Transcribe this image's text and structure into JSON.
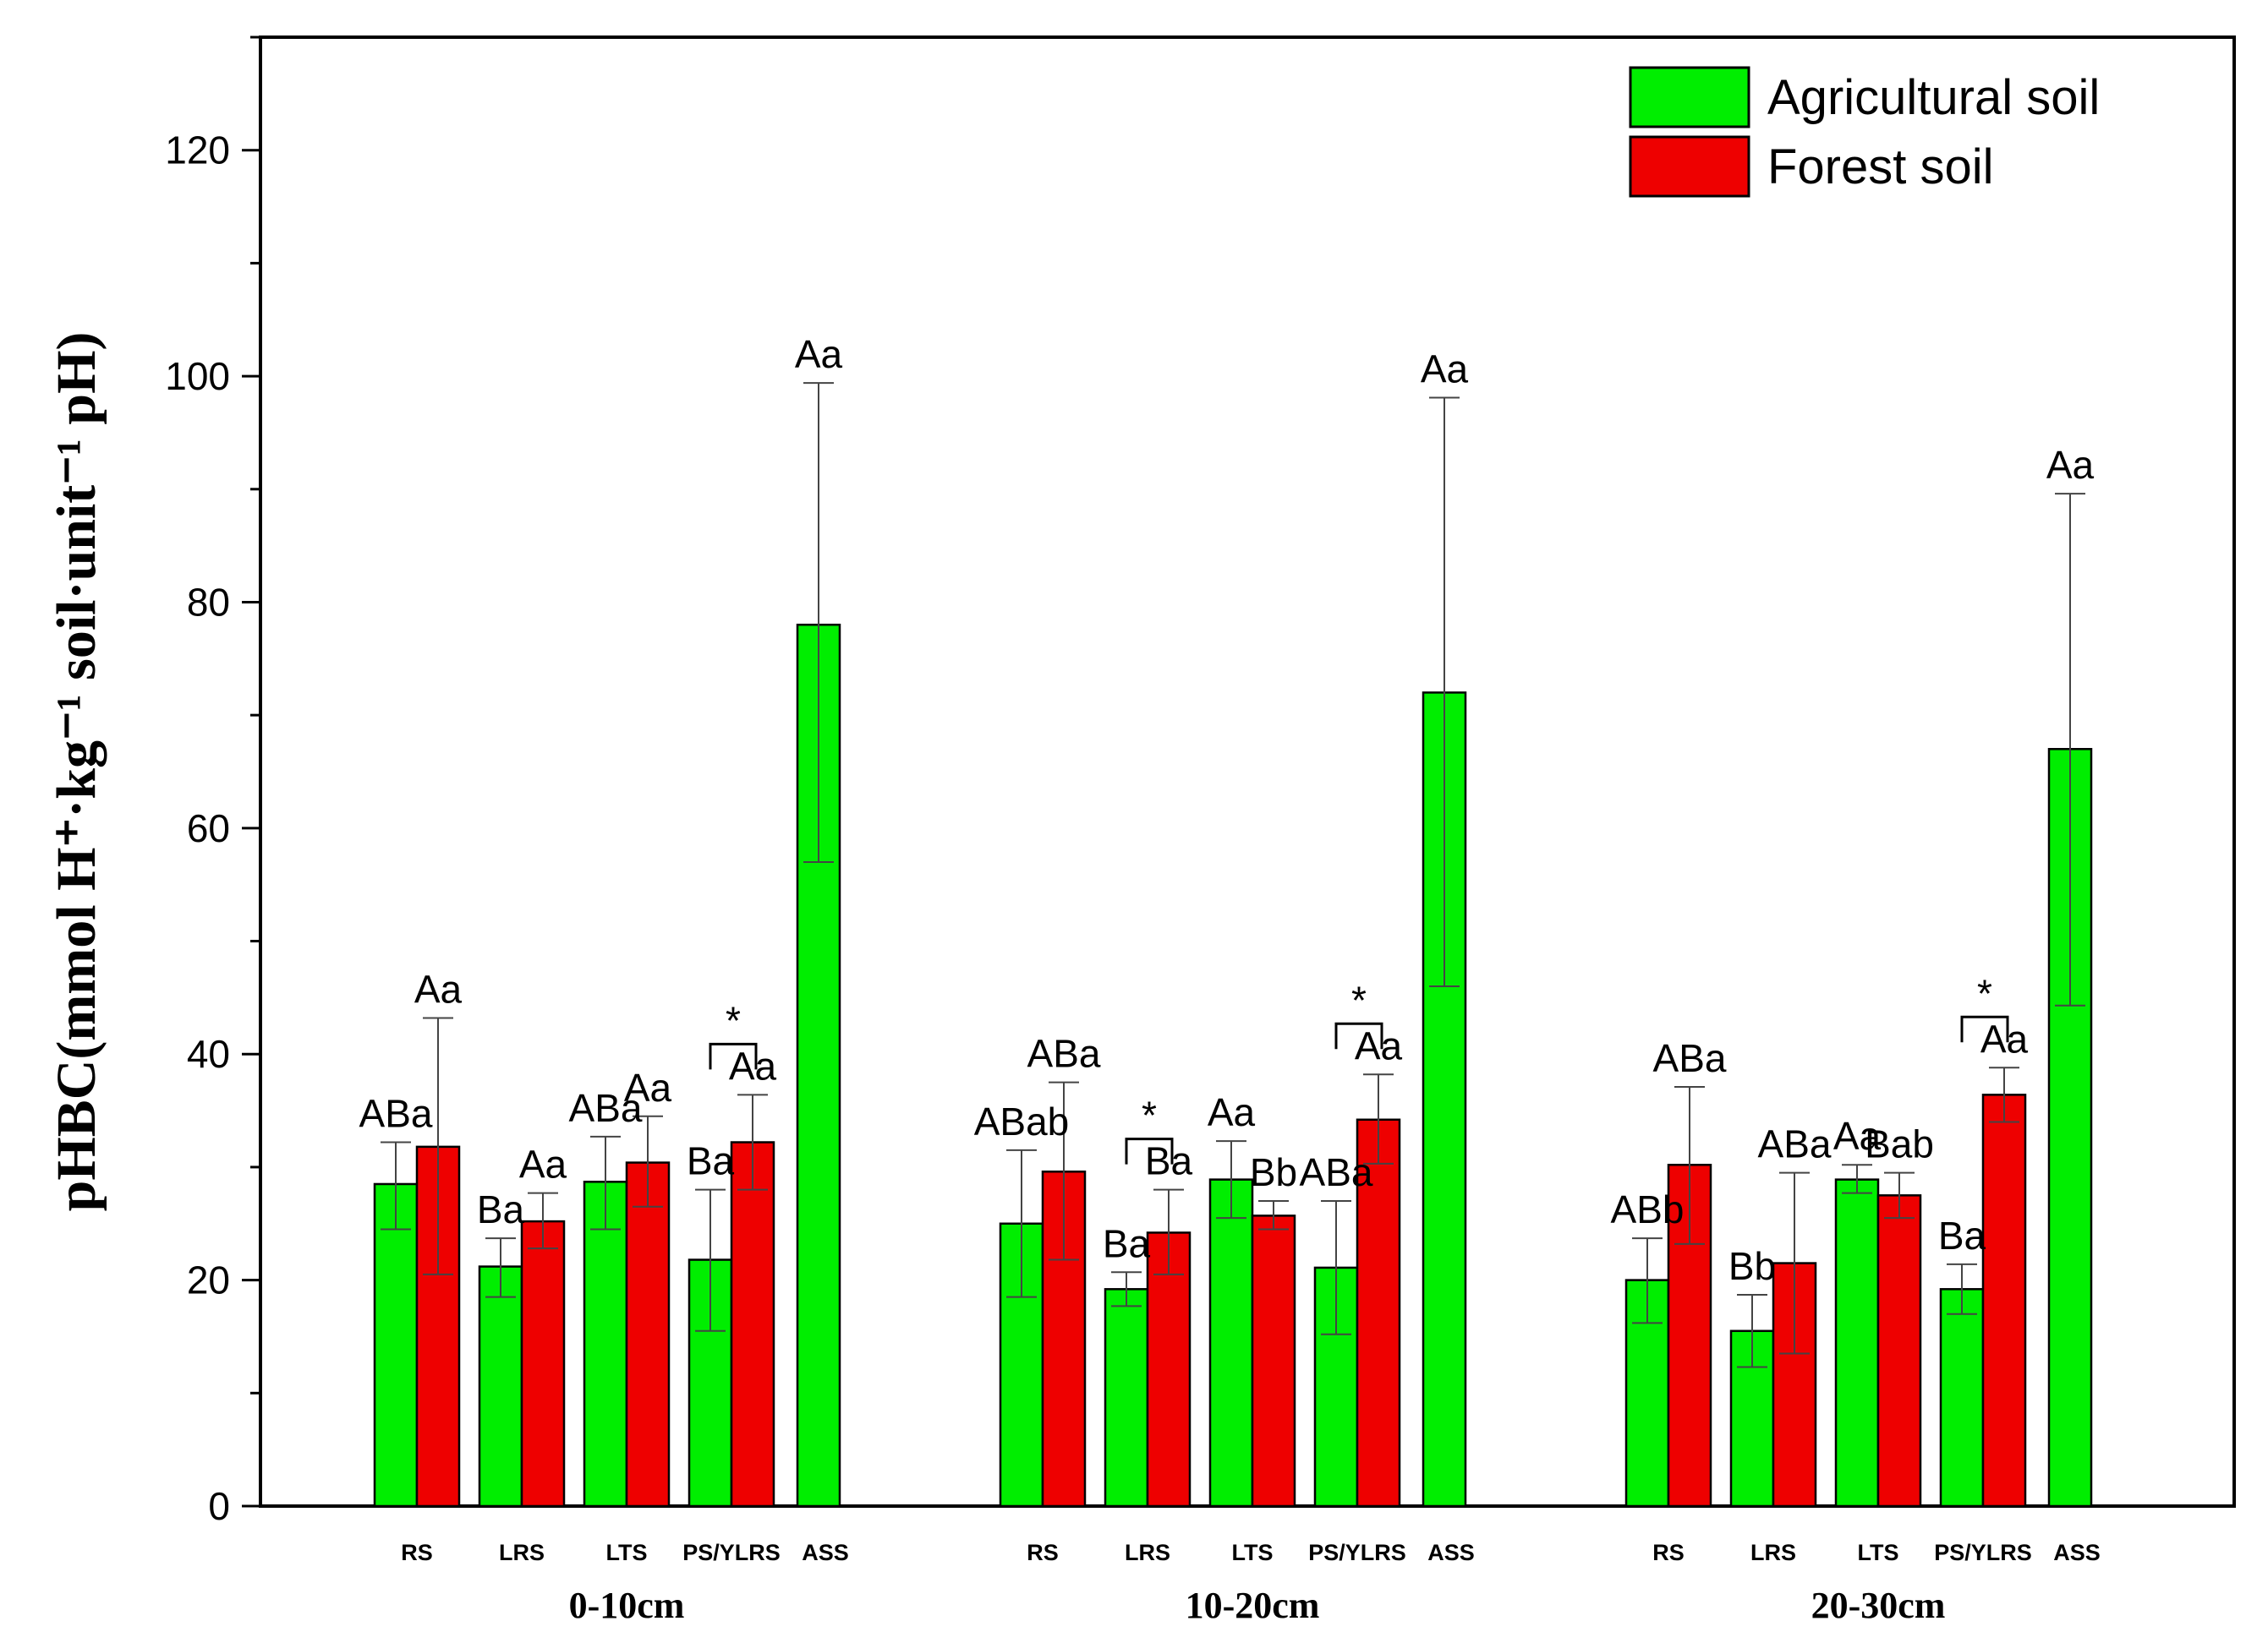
{
  "chart_data": {
    "type": "bar",
    "ylabel": "pHBC(mmol H⁺·kg⁻¹ soil·unit⁻¹ pH)",
    "ylim": [
      0,
      130
    ],
    "yticks": [
      0,
      20,
      40,
      60,
      80,
      100,
      120
    ],
    "legend_position": "top-right",
    "series": [
      {
        "name": "Agricultural soil",
        "color": "#00ee00"
      },
      {
        "name": "Forest soil",
        "color": "#ee0000"
      }
    ],
    "groups": [
      {
        "name": "0-10cm",
        "categories": [
          {
            "label": "RS",
            "bars": [
              {
                "series": 0,
                "value": 28.5,
                "err_low": 24.5,
                "err_high": 32.2,
                "label": "ABa"
              },
              {
                "series": 1,
                "value": 31.8,
                "err_low": 20.5,
                "err_high": 43.2,
                "label": "Aa"
              }
            ]
          },
          {
            "label": "LRS",
            "bars": [
              {
                "series": 0,
                "value": 21.2,
                "err_low": 18.5,
                "err_high": 23.7,
                "label": "Ba"
              },
              {
                "series": 1,
                "value": 25.2,
                "err_low": 22.8,
                "err_high": 27.7,
                "label": "Aa"
              }
            ]
          },
          {
            "label": "LTS",
            "bars": [
              {
                "series": 0,
                "value": 28.7,
                "err_low": 24.5,
                "err_high": 32.7,
                "label": "ABa"
              },
              {
                "series": 1,
                "value": 30.4,
                "err_low": 26.5,
                "err_high": 34.5,
                "label": "Aa"
              }
            ]
          },
          {
            "label": "PS/YLRS",
            "star": "*",
            "bars": [
              {
                "series": 0,
                "value": 21.8,
                "err_low": 15.5,
                "err_high": 28.0,
                "label": "Ba"
              },
              {
                "series": 1,
                "value": 32.2,
                "err_low": 28.0,
                "err_high": 36.4,
                "label": "Aa"
              }
            ]
          },
          {
            "label": "ASS",
            "bars": [
              {
                "series": 0,
                "value": 78.0,
                "err_low": 57.0,
                "err_high": 99.4,
                "label": "Aa"
              }
            ]
          }
        ]
      },
      {
        "name": "10-20cm",
        "categories": [
          {
            "label": "RS",
            "bars": [
              {
                "series": 0,
                "value": 25.0,
                "err_low": 18.5,
                "err_high": 31.5,
                "label": "ABab"
              },
              {
                "series": 1,
                "value": 29.6,
                "err_low": 21.8,
                "err_high": 37.5,
                "label": "ABa"
              }
            ]
          },
          {
            "label": "LRS",
            "star": "*",
            "bars": [
              {
                "series": 0,
                "value": 19.2,
                "err_low": 17.7,
                "err_high": 20.7,
                "label": "Ba"
              },
              {
                "series": 1,
                "value": 24.2,
                "err_low": 20.5,
                "err_high": 28.0,
                "label": "Ba"
              }
            ]
          },
          {
            "label": "LTS",
            "bars": [
              {
                "series": 0,
                "value": 28.9,
                "err_low": 25.5,
                "err_high": 32.3,
                "label": "Aa"
              },
              {
                "series": 1,
                "value": 25.7,
                "err_low": 24.5,
                "err_high": 27.0,
                "label": "Bb"
              }
            ]
          },
          {
            "label": "PS/YLRS",
            "star": "*",
            "bars": [
              {
                "series": 0,
                "value": 21.1,
                "err_low": 15.2,
                "err_high": 27.0,
                "label": "ABa"
              },
              {
                "series": 1,
                "value": 34.2,
                "err_low": 30.3,
                "err_high": 38.2,
                "label": "Aa"
              }
            ]
          },
          {
            "label": "ASS",
            "bars": [
              {
                "series": 0,
                "value": 72.0,
                "err_low": 46.0,
                "err_high": 98.1,
                "label": "Aa"
              }
            ]
          }
        ]
      },
      {
        "name": "20-30cm",
        "categories": [
          {
            "label": "RS",
            "bars": [
              {
                "series": 0,
                "value": 20.0,
                "err_low": 16.2,
                "err_high": 23.7,
                "label": "ABb"
              },
              {
                "series": 1,
                "value": 30.2,
                "err_low": 23.2,
                "err_high": 37.1,
                "label": "ABa"
              }
            ]
          },
          {
            "label": "LRS",
            "bars": [
              {
                "series": 0,
                "value": 15.5,
                "err_low": 12.3,
                "err_high": 18.7,
                "label": "Bb"
              },
              {
                "series": 1,
                "value": 21.5,
                "err_low": 13.5,
                "err_high": 29.5,
                "label": "ABa"
              }
            ]
          },
          {
            "label": "LTS",
            "bars": [
              {
                "series": 0,
                "value": 28.9,
                "err_low": 27.7,
                "err_high": 30.2,
                "label": "Aa"
              },
              {
                "series": 1,
                "value": 27.5,
                "err_low": 25.5,
                "err_high": 29.5,
                "label": "Bab"
              }
            ]
          },
          {
            "label": "PS/YLRS",
            "star": "*",
            "bars": [
              {
                "series": 0,
                "value": 19.2,
                "err_low": 17.0,
                "err_high": 21.4,
                "label": "Ba"
              },
              {
                "series": 1,
                "value": 36.4,
                "err_low": 34.0,
                "err_high": 38.8,
                "label": "Aa"
              }
            ]
          },
          {
            "label": "ASS",
            "bars": [
              {
                "series": 0,
                "value": 67.0,
                "err_low": 44.3,
                "err_high": 89.6,
                "label": "Aa"
              }
            ]
          }
        ]
      }
    ]
  }
}
